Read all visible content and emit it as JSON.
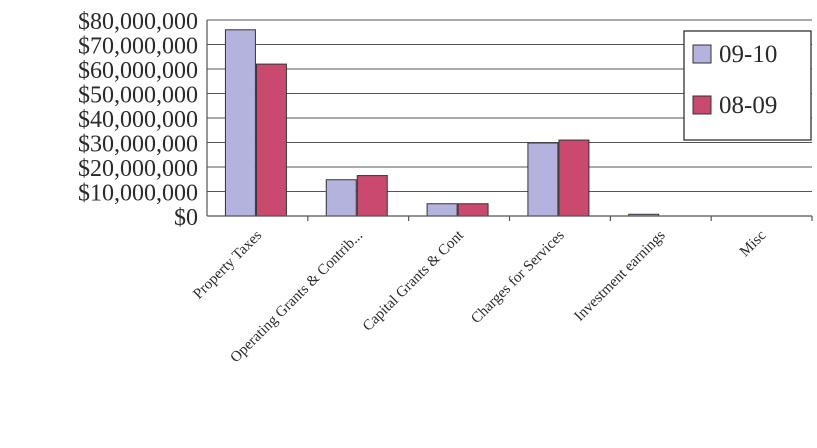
{
  "chart_data": {
    "type": "bar",
    "categories": [
      "Property Taxes",
      "Operating Grants & Contrib...",
      "Capital Grants & Cont",
      "Charges for Services",
      "Investment earnings",
      "Misc"
    ],
    "series": [
      {
        "name": "09-10",
        "color": "#b3b3de",
        "values": [
          76000000,
          14800000,
          5000000,
          29800000,
          700000,
          0
        ]
      },
      {
        "name": "08-09",
        "color": "#c94a6e",
        "values": [
          62000000,
          16500000,
          5000000,
          31000000,
          0,
          0
        ]
      }
    ],
    "y_ticks": [
      "$80,000,000",
      "$70,000,000",
      "$60,000,000",
      "$50,000,000",
      "$40,000,000",
      "$30,000,000",
      "$20,000,000",
      "$10,000,000",
      "$0"
    ],
    "ylim": [
      0,
      80000000
    ],
    "grid": true,
    "legend_position": "top-right",
    "title": "",
    "xlabel": "",
    "ylabel": ""
  }
}
